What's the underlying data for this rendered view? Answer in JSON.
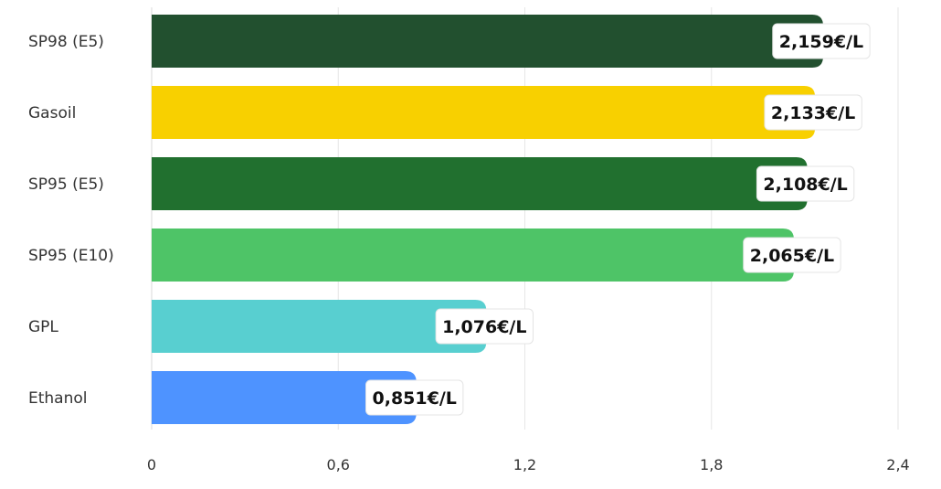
{
  "chart_data": {
    "type": "bar",
    "orientation": "horizontal",
    "categories": [
      "SP98 (E5)",
      "Gasoil",
      "SP95 (E5)",
      "SP95 (E10)",
      "GPL",
      "Ethanol"
    ],
    "values": [
      2.159,
      2.133,
      2.108,
      2.065,
      1.076,
      0.851
    ],
    "data_labels": [
      "2,159€/L",
      "2,133€/L",
      "2,108€/L",
      "2,065€/L",
      "1,076€/L",
      "0,851€/L"
    ],
    "colors": [
      "#22502f",
      "#f8d000",
      "#21702f",
      "#4ec467",
      "#58cfd0",
      "#4e93ff"
    ],
    "xlim": [
      0,
      2.4
    ],
    "xticks": [
      0,
      0.6,
      1.2,
      1.8,
      2.4
    ],
    "xtick_labels": [
      "0",
      "0,6",
      "1,2",
      "1,8",
      "2,4"
    ],
    "grid": true,
    "legend": "none",
    "title": "",
    "xlabel": "",
    "ylabel": ""
  }
}
